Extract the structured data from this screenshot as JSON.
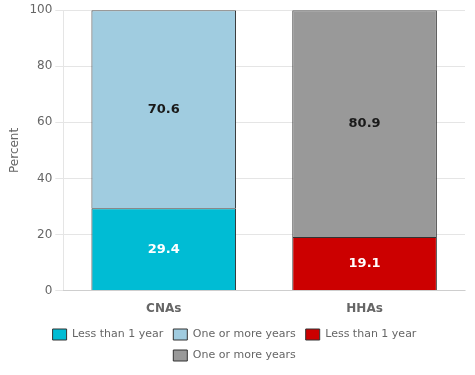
{
  "chart_data": {
    "type": "bar",
    "categories": [
      "CNAs",
      "HHAs"
    ],
    "series": [
      {
        "name": "Less than 1 year",
        "color": "#00bcd4",
        "values": [
          29.4,
          null
        ]
      },
      {
        "name": "One or more years",
        "color": "#a0cce0",
        "values": [
          70.6,
          null
        ]
      },
      {
        "name": "Less than 1 year",
        "color": "#cc0000",
        "values": [
          null,
          19.1
        ]
      },
      {
        "name": "One or more years",
        "color": "#999999",
        "values": [
          null,
          80.9
        ]
      }
    ],
    "stacked": true,
    "ylabel": "Percent",
    "ylim": [
      0,
      100
    ],
    "yticks": [
      0,
      20,
      40,
      60,
      80,
      100
    ],
    "grid": true,
    "legend": "bottom",
    "data_labels": true
  }
}
